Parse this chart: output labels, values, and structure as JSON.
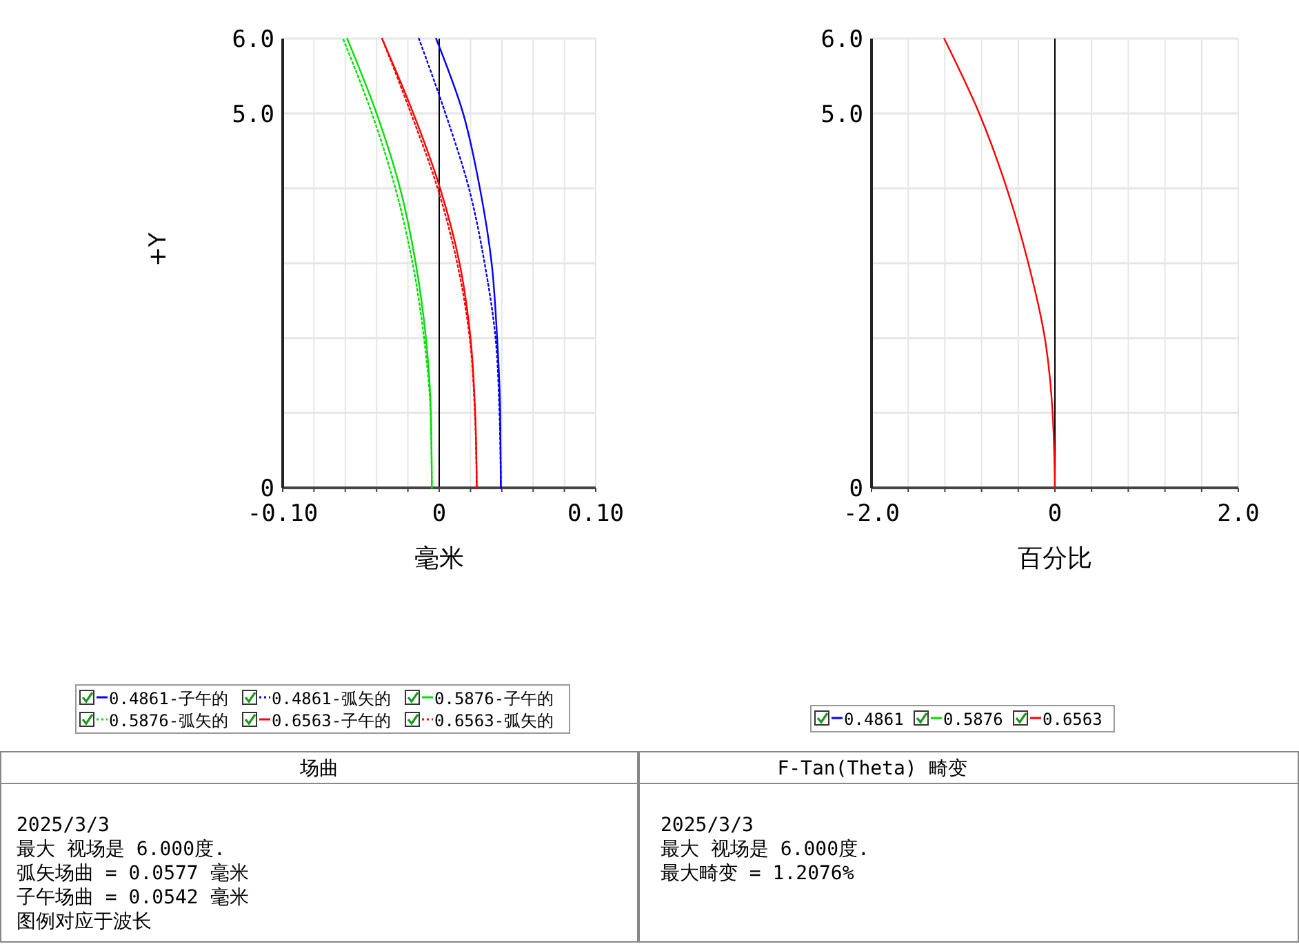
{
  "chart_data": [
    {
      "type": "line",
      "title": "场曲",
      "xlabel": "毫米",
      "ylabel": "+Y",
      "xlim": [
        -0.1,
        0.1
      ],
      "ylim": [
        0,
        6
      ],
      "xticks": [
        {
          "value": -0.1,
          "label": "-0.10"
        },
        {
          "value": -0.08,
          "label": null
        },
        {
          "value": -0.06,
          "label": null
        },
        {
          "value": -0.04,
          "label": null
        },
        {
          "value": -0.02,
          "label": null
        },
        0,
        {
          "value": 0.02,
          "label": null
        },
        {
          "value": 0.04,
          "label": null
        },
        {
          "value": 0.06,
          "label": null
        },
        {
          "value": 0.08,
          "label": null
        },
        {
          "value": 0.1,
          "label": "0.10"
        }
      ],
      "yticks": [
        0,
        {
          "value": 1,
          "label": null
        },
        {
          "value": 2,
          "label": null
        },
        {
          "value": 3,
          "label": null
        },
        {
          "value": 4,
          "label": null
        },
        {
          "value": 5,
          "label": "5.0"
        },
        {
          "value": 6,
          "label": "6.0"
        }
      ],
      "grid": true,
      "legend": "bottom",
      "ref_lines": [
        {
          "axis": "x",
          "value": 0,
          "color": "#000000"
        }
      ],
      "series": [
        {
          "name": "0.4861-子午的",
          "color": "#0000ff",
          "line_style": "solid",
          "x": [
            0.0394,
            0.039,
            0.037,
            0.0335,
            0.026,
            0.0153,
            -0.002
          ],
          "values": [
            0,
            1,
            2,
            3,
            4,
            5,
            6
          ]
        },
        {
          "name": "0.4861-弧矢的",
          "color": "#0000ff",
          "line_style": "dotted",
          "x": [
            0.0394,
            0.0385,
            0.036,
            0.029,
            0.019,
            0.004,
            -0.013
          ],
          "values": [
            0,
            1,
            2,
            3,
            4,
            5,
            6
          ]
        },
        {
          "name": "0.5876-子午的",
          "color": "#00e000",
          "line_style": "solid",
          "x": [
            -0.0047,
            -0.0053,
            -0.0085,
            -0.015,
            -0.025,
            -0.04,
            -0.0588
          ],
          "values": [
            0,
            1,
            2,
            3,
            4,
            5,
            6
          ]
        },
        {
          "name": "0.5876-弧矢的",
          "color": "#00e000",
          "line_style": "dotted",
          "x": [
            -0.0047,
            -0.0055,
            -0.0097,
            -0.017,
            -0.028,
            -0.043,
            -0.0615
          ],
          "values": [
            0,
            1,
            2,
            3,
            4,
            5,
            6
          ]
        },
        {
          "name": "0.6563-子午的",
          "color": "#ff0000",
          "line_style": "solid",
          "x": [
            0.024,
            0.023,
            0.02,
            0.013,
            0.0006,
            -0.0165,
            -0.0365
          ],
          "values": [
            0,
            1,
            2,
            3,
            4,
            5,
            6
          ]
        },
        {
          "name": "0.6563-弧矢的",
          "color": "#ff0000",
          "line_style": "dotted",
          "x": [
            0.024,
            0.0228,
            0.0195,
            0.0115,
            -0.001,
            -0.018,
            -0.0365
          ],
          "values": [
            0,
            1,
            2,
            3,
            4,
            5,
            6
          ]
        }
      ],
      "annotations": [
        "2025/3/3",
        "最大 视场是 6.000度.",
        "弧矢场曲 = 0.0577 毫米",
        "子午场曲 = 0.0542 毫米",
        "图例对应于波长"
      ]
    },
    {
      "type": "line",
      "title": "F-Tan(Theta) 畸变",
      "xlabel": "百分比",
      "xlim": [
        -2,
        2
      ],
      "ylim": [
        0,
        6
      ],
      "xticks": [
        {
          "value": -2,
          "label": "-2.0"
        },
        {
          "value": -1.6,
          "label": null
        },
        {
          "value": -1.2,
          "label": null
        },
        {
          "value": -0.8,
          "label": null
        },
        {
          "value": -0.4,
          "label": null
        },
        0,
        {
          "value": 0.4,
          "label": null
        },
        {
          "value": 0.8,
          "label": null
        },
        {
          "value": 1.2,
          "label": null
        },
        {
          "value": 1.6,
          "label": null
        },
        {
          "value": 2,
          "label": "2.0"
        }
      ],
      "yticks": [
        0,
        {
          "value": 1,
          "label": null
        },
        {
          "value": 2,
          "label": null
        },
        {
          "value": 3,
          "label": null
        },
        {
          "value": 4,
          "label": null
        },
        {
          "value": 5,
          "label": "5.0"
        },
        {
          "value": 6,
          "label": "6.0"
        }
      ],
      "grid": true,
      "legend": "bottom",
      "ref_lines": [
        {
          "axis": "x",
          "value": 0,
          "color": "#000000"
        }
      ],
      "series": [
        {
          "name": "0.4861",
          "color": "#0000ff",
          "line_style": "solid",
          "values": [
            null,
            null,
            null,
            null,
            null,
            null,
            null
          ]
        },
        {
          "name": "0.5876",
          "color": "#00e000",
          "line_style": "solid",
          "values": [
            null,
            null,
            null,
            null,
            null,
            null,
            null
          ]
        },
        {
          "name": "0.6563",
          "color": "#ff0000",
          "line_style": "solid",
          "x": [
            0,
            -0.025,
            -0.11,
            -0.29,
            -0.525,
            -0.825,
            -1.2076
          ],
          "values": [
            0,
            1,
            2,
            3,
            4,
            5,
            6
          ]
        }
      ],
      "annotations": [
        "2025/3/3",
        "最大 视场是 6.000度.",
        "最大畸变 = 1.2076%"
      ]
    }
  ]
}
